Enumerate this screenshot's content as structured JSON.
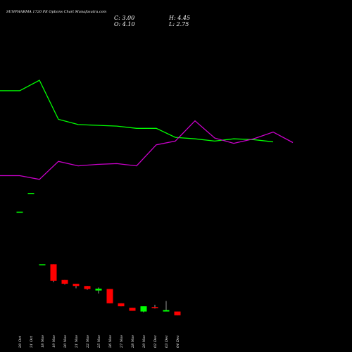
{
  "header": {
    "title": "SUNPHARMA 1720 PE Options Chart Munafasutra.com",
    "close_label": "C: 3.00",
    "open_label": "O: 4.10",
    "high_label": "H: 4.45",
    "low_label": "L: 2.75"
  },
  "colors": {
    "background": "#000000",
    "up": "#00ff00",
    "down": "#ff0000",
    "line_green": "#00ff00",
    "line_magenta": "#cc00cc",
    "text": "#ffffff"
  },
  "chart_data": {
    "type": "candlestick",
    "title": "SUNPHARMA 1720 PE Options Chart Munafasutra.com",
    "xlabel": "",
    "ylabel": "",
    "grid": false,
    "categories": [
      "29 Oct",
      "31 Oct",
      "18 Nov",
      "19 Nov",
      "20 Nov",
      "21 Nov",
      "22 Nov",
      "25 Nov",
      "26 Nov",
      "27 Nov",
      "28 Nov",
      "29 Nov",
      "02 Dec",
      "03 Dec",
      "04 Dec"
    ],
    "candles": [
      {
        "date": "29 Oct",
        "open": 28.0,
        "high": 28.0,
        "low": 28.0,
        "close": 28.0
      },
      {
        "date": "31 Oct",
        "open": 33.0,
        "high": 33.0,
        "low": 33.0,
        "close": 33.0
      },
      {
        "date": "18 Nov",
        "open": 14.0,
        "high": 14.0,
        "low": 14.0,
        "close": 14.0
      },
      {
        "date": "19 Nov",
        "open": 14.0,
        "high": 14.0,
        "low": 9.2,
        "close": 9.6
      },
      {
        "date": "20 Nov",
        "open": 9.8,
        "high": 9.8,
        "low": 8.6,
        "close": 8.8
      },
      {
        "date": "21 Nov",
        "open": 8.8,
        "high": 8.8,
        "low": 7.6,
        "close": 8.2
      },
      {
        "date": "22 Nov",
        "open": 8.2,
        "high": 8.2,
        "low": 7.2,
        "close": 7.4
      },
      {
        "date": "25 Nov",
        "open": 7.0,
        "high": 7.8,
        "low": 6.2,
        "close": 7.5
      },
      {
        "date": "26 Nov",
        "open": 7.4,
        "high": 7.4,
        "low": 3.6,
        "close": 3.6
      },
      {
        "date": "27 Nov",
        "open": 3.6,
        "high": 3.6,
        "low": 2.8,
        "close": 2.8
      },
      {
        "date": "28 Nov",
        "open": 2.4,
        "high": 2.4,
        "low": 1.6,
        "close": 1.6
      },
      {
        "date": "29 Nov",
        "open": 1.4,
        "high": 2.8,
        "low": 1.2,
        "close": 2.8
      },
      {
        "date": "02 Dec",
        "open": 2.6,
        "high": 3.2,
        "low": 2.2,
        "close": 2.4
      },
      {
        "date": "03 Dec",
        "open": 1.4,
        "high": 4.2,
        "low": 1.4,
        "close": 1.8
      },
      {
        "date": "04 Dec",
        "open": 1.4,
        "high": 1.4,
        "low": 0.4,
        "close": 0.4
      }
    ],
    "green_line": [
      {
        "date": "29 Oct",
        "value": 60.2
      },
      {
        "date": "31 Oct",
        "value": 60.2
      },
      {
        "date": "18 Nov",
        "value": 63.0
      },
      {
        "date": "19 Nov",
        "value": 52.6
      },
      {
        "date": "20 Nov",
        "value": 51.2
      },
      {
        "date": "21 Nov",
        "value": 51.0
      },
      {
        "date": "22 Nov",
        "value": 50.8
      },
      {
        "date": "25 Nov",
        "value": 50.2
      },
      {
        "date": "26 Nov",
        "value": 50.2
      },
      {
        "date": "27 Nov",
        "value": 47.8
      },
      {
        "date": "28 Nov",
        "value": 47.4
      },
      {
        "date": "29 Nov",
        "value": 46.8
      },
      {
        "date": "02 Dec",
        "value": 47.4
      },
      {
        "date": "03 Dec",
        "value": 47.2
      },
      {
        "date": "04 Dec",
        "value": 46.6
      }
    ],
    "magenta_line": [
      {
        "date": "29 Oct",
        "value": 37.6
      },
      {
        "date": "31 Oct",
        "value": 37.6
      },
      {
        "date": "18 Nov",
        "value": 36.6
      },
      {
        "date": "19 Nov",
        "value": 41.4
      },
      {
        "date": "20 Nov",
        "value": 40.2
      },
      {
        "date": "21 Nov",
        "value": 40.6
      },
      {
        "date": "22 Nov",
        "value": 40.8
      },
      {
        "date": "25 Nov",
        "value": 40.2
      },
      {
        "date": "26 Nov",
        "value": 45.8
      },
      {
        "date": "27 Nov",
        "value": 46.8
      },
      {
        "date": "28 Nov",
        "value": 52.2
      },
      {
        "date": "29 Nov",
        "value": 47.6
      },
      {
        "date": "02 Dec",
        "value": 46.2
      },
      {
        "date": "03 Dec",
        "value": 47.4
      },
      {
        "date": "04 Dec",
        "value": 49.2
      },
      {
        "date": "04 Dec+",
        "value": 46.4
      }
    ],
    "ylim": [
      0,
      75
    ]
  }
}
